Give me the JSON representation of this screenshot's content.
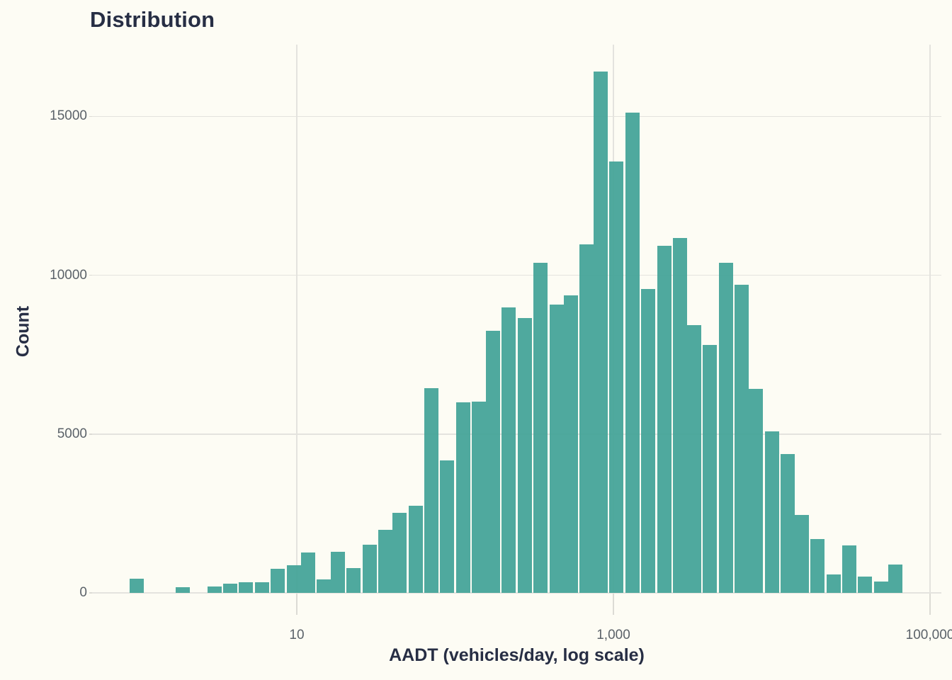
{
  "chart_data": {
    "type": "histogram",
    "title": "Distribution",
    "xlabel": "AADT (vehicles/day, log scale)",
    "ylabel": "Count",
    "x_scale": "log10",
    "x_unit": "vehicles/day",
    "legend": "none",
    "grid": "on",
    "x_axis": {
      "range_log10": [
        -0.29,
        5.07
      ],
      "ticks": [
        {
          "value": 10,
          "label": "10"
        },
        {
          "value": 1000,
          "label": "1,000"
        },
        {
          "value": 100000,
          "label": "100,000"
        }
      ]
    },
    "y_axis": {
      "range": [
        0,
        17300
      ],
      "ticks": [
        {
          "value": 0,
          "label": "0"
        },
        {
          "value": 5000,
          "label": "5000"
        },
        {
          "value": 10000,
          "label": "10000"
        },
        {
          "value": 15000,
          "label": "15000"
        }
      ]
    },
    "bin_width_log10": 0.098,
    "bars": [
      {
        "log10_center": -0.01,
        "count": 450
      },
      {
        "log10_center": 0.28,
        "count": 170
      },
      {
        "log10_center": 0.48,
        "count": 210
      },
      {
        "log10_center": 0.58,
        "count": 300
      },
      {
        "log10_center": 0.68,
        "count": 340
      },
      {
        "log10_center": 0.78,
        "count": 330
      },
      {
        "log10_center": 0.88,
        "count": 750
      },
      {
        "log10_center": 0.98,
        "count": 875
      },
      {
        "log10_center": 1.07,
        "count": 1270
      },
      {
        "log10_center": 1.17,
        "count": 430
      },
      {
        "log10_center": 1.26,
        "count": 1300
      },
      {
        "log10_center": 1.36,
        "count": 775
      },
      {
        "log10_center": 1.46,
        "count": 1510
      },
      {
        "log10_center": 1.56,
        "count": 1980
      },
      {
        "log10_center": 1.65,
        "count": 2530
      },
      {
        "log10_center": 1.75,
        "count": 2750
      },
      {
        "log10_center": 1.85,
        "count": 6440
      },
      {
        "log10_center": 1.95,
        "count": 4170
      },
      {
        "log10_center": 2.05,
        "count": 6000
      },
      {
        "log10_center": 2.15,
        "count": 6010
      },
      {
        "log10_center": 2.24,
        "count": 8240
      },
      {
        "log10_center": 2.34,
        "count": 8980
      },
      {
        "log10_center": 2.44,
        "count": 8650
      },
      {
        "log10_center": 2.54,
        "count": 10390
      },
      {
        "log10_center": 2.64,
        "count": 9070
      },
      {
        "log10_center": 2.73,
        "count": 9360
      },
      {
        "log10_center": 2.83,
        "count": 10960
      },
      {
        "log10_center": 2.92,
        "count": 16400
      },
      {
        "log10_center": 3.02,
        "count": 13570
      },
      {
        "log10_center": 3.12,
        "count": 15120
      },
      {
        "log10_center": 3.22,
        "count": 9560
      },
      {
        "log10_center": 3.32,
        "count": 10920
      },
      {
        "log10_center": 3.42,
        "count": 11180
      },
      {
        "log10_center": 3.51,
        "count": 8420
      },
      {
        "log10_center": 3.61,
        "count": 7800
      },
      {
        "log10_center": 3.71,
        "count": 10390
      },
      {
        "log10_center": 3.81,
        "count": 9690
      },
      {
        "log10_center": 3.9,
        "count": 6415
      },
      {
        "log10_center": 4.0,
        "count": 5080
      },
      {
        "log10_center": 4.1,
        "count": 4360
      },
      {
        "log10_center": 4.19,
        "count": 2445
      },
      {
        "log10_center": 4.29,
        "count": 1700
      },
      {
        "log10_center": 4.39,
        "count": 570
      },
      {
        "log10_center": 4.49,
        "count": 1500
      },
      {
        "log10_center": 4.59,
        "count": 510
      },
      {
        "log10_center": 4.69,
        "count": 360
      },
      {
        "log10_center": 4.78,
        "count": 890
      }
    ],
    "colors": {
      "bar": "#52AB9E",
      "background": "#FDFCF4",
      "gridline": "#E4E3DE",
      "title_text": "#272E44",
      "tick_text": "#5B6269"
    }
  }
}
